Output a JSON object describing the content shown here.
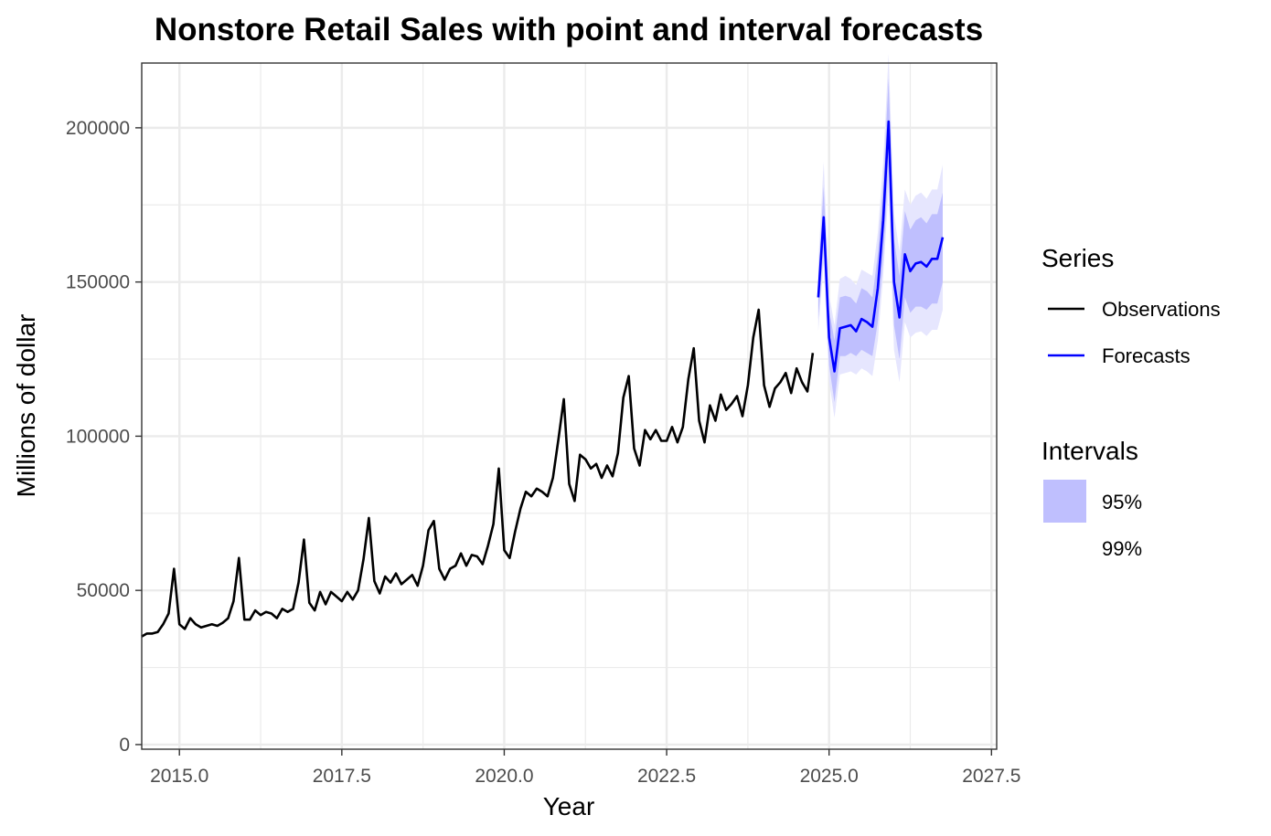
{
  "chart_data": {
    "type": "line",
    "title": "Nonstore Retail Sales with point and interval forecasts",
    "xlabel": "Year",
    "ylabel": "Millions of dollar",
    "xlim": [
      2014.42,
      2027.58
    ],
    "ylim": [
      -1500,
      221000
    ],
    "x_ticks": [
      2015,
      2017.5,
      2020,
      2022.5,
      2025,
      2027.5
    ],
    "x_tick_labels": [
      "2015.0",
      "2017.5",
      "2020.0",
      "2022.5",
      "2025.0",
      "2027.5"
    ],
    "y_ticks": [
      0,
      50000,
      100000,
      150000,
      200000
    ],
    "y_tick_labels": [
      "0",
      "50000",
      "100000",
      "150000",
      "200000"
    ],
    "grid": true,
    "legend": {
      "placement": "right",
      "series_title": "Series",
      "series_entries": [
        {
          "label": "Observations",
          "color": "#000000"
        },
        {
          "label": "Forecasts",
          "color": "#0000ff"
        }
      ],
      "intervals_title": "Intervals",
      "interval_entries": [
        {
          "label": "95%",
          "color": "#bfbffe"
        },
        {
          "label": "99%",
          "color": "#ffffff"
        }
      ]
    },
    "colors": {
      "observations": "#000000",
      "forecasts": "#0000ff",
      "band95": "#bfbffe",
      "band99": "#e6e6fe"
    },
    "start": 2014.4167,
    "step": 0.083333,
    "series": [
      {
        "name": "Observations",
        "x_start": 2014.4167,
        "values": [
          35000,
          36000,
          36000,
          36500,
          39000,
          42500,
          57000,
          39000,
          37500,
          41000,
          39000,
          38000,
          38500,
          39000,
          38500,
          39500,
          41000,
          46500,
          60500,
          40500,
          40500,
          43500,
          42000,
          43000,
          42500,
          41000,
          44000,
          43000,
          44000,
          52500,
          66500,
          46000,
          43500,
          49500,
          45500,
          49500,
          48000,
          46500,
          49500,
          47000,
          50000,
          60000,
          73500,
          53000,
          49000,
          54500,
          52500,
          55500,
          52000,
          53500,
          55000,
          51500,
          58000,
          69500,
          72500,
          57000,
          53500,
          57000,
          58000,
          62000,
          58000,
          61500,
          61000,
          58500,
          64500,
          71500,
          89500,
          63000,
          60500,
          69000,
          76500,
          82000,
          80500,
          83000,
          82000,
          80500,
          86500,
          99000,
          112000,
          84500,
          79000,
          94000,
          92500,
          89500,
          91000,
          86500,
          90500,
          87000,
          94500,
          112500,
          119500,
          96000,
          90500,
          102000,
          99000,
          102000,
          98500,
          98500,
          103000,
          98000,
          103000,
          118500,
          128500,
          105000,
          98000,
          110000,
          105000,
          113500,
          108500,
          110500,
          113000,
          106500,
          116500,
          132000,
          141000,
          116500,
          109500,
          115500,
          117500,
          120500,
          114000,
          122000,
          117500,
          114500,
          127000
        ]
      },
      {
        "name": "Forecasts",
        "x_start": 2024.8333,
        "values": [
          145000,
          171000,
          132000,
          121000,
          135000,
          135500,
          136000,
          134000,
          138000,
          137000,
          135500,
          148000,
          170000,
          202000,
          150000,
          138500,
          159000,
          153500,
          156000,
          156500,
          155000,
          157500,
          157500,
          164500
        ],
        "lo95": [
          138000,
          161000,
          123000,
          111000,
          126000,
          126000,
          127000,
          126000,
          128000,
          127000,
          126000,
          137000,
          158000,
          188000,
          136000,
          125000,
          145000,
          140000,
          142000,
          142000,
          141000,
          143000,
          143000,
          150000
        ],
        "hi95": [
          152000,
          181000,
          141000,
          131000,
          145000,
          145500,
          145000,
          143000,
          148000,
          147000,
          145000,
          159000,
          182000,
          216000,
          164000,
          152000,
          173000,
          167000,
          170000,
          171000,
          169000,
          172000,
          172000,
          179000
        ],
        "lo99": [
          134000,
          156000,
          118000,
          106000,
          120000,
          120500,
          121000,
          120000,
          122000,
          121000,
          119500,
          131000,
          152000,
          180000,
          128000,
          117500,
          137000,
          132000,
          133500,
          134000,
          132500,
          134500,
          134500,
          141000
        ],
        "hi99": [
          156000,
          189000,
          146000,
          136000,
          151000,
          152000,
          151000,
          149000,
          154000,
          153000,
          152000,
          166000,
          189000,
          224000,
          172000,
          160000,
          180000,
          175000,
          178000,
          179000,
          177000,
          180000,
          180000,
          188000
        ]
      }
    ]
  }
}
